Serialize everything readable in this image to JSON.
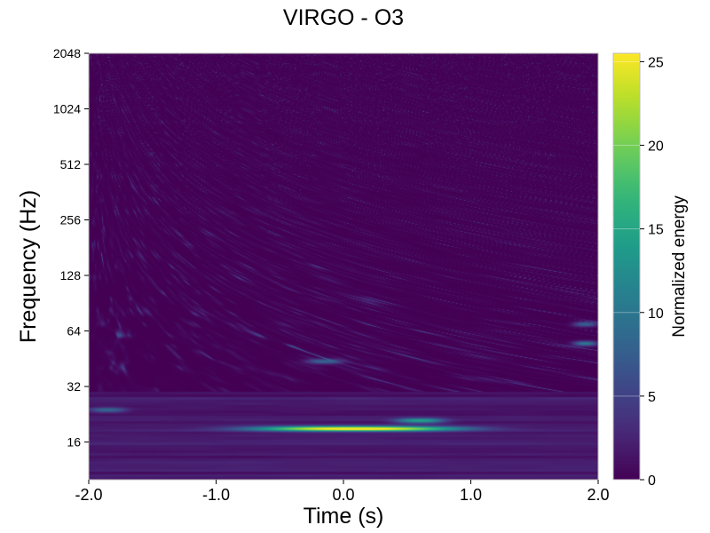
{
  "chart_data": {
    "type": "heatmap",
    "title": "VIRGO - O3",
    "xlabel": "Time (s)",
    "ylabel": "Frequency (Hz)",
    "xlim": [
      -2.0,
      2.0
    ],
    "ylim": [
      10,
      2048
    ],
    "yscale": "log2",
    "xticks": [
      {
        "value": -2.0,
        "label": "-2.0"
      },
      {
        "value": -1.0,
        "label": "-1.0"
      },
      {
        "value": 0.0,
        "label": "0.0"
      },
      {
        "value": 1.0,
        "label": "1.0"
      },
      {
        "value": 2.0,
        "label": "2.0"
      }
    ],
    "yticks": [
      {
        "value": 16,
        "label": "16"
      },
      {
        "value": 32,
        "label": "32"
      },
      {
        "value": 64,
        "label": "64"
      },
      {
        "value": 128,
        "label": "128"
      },
      {
        "value": 256,
        "label": "256"
      },
      {
        "value": 512,
        "label": "512"
      },
      {
        "value": 1024,
        "label": "1024"
      },
      {
        "value": 2048,
        "label": "2048"
      }
    ],
    "colorbar": {
      "label": "Normalized energy",
      "range": [
        0,
        25.5
      ],
      "colormap": "viridis",
      "ticks": [
        {
          "value": 0,
          "label": "0"
        },
        {
          "value": 5,
          "label": "5"
        },
        {
          "value": 10,
          "label": "10"
        },
        {
          "value": 15,
          "label": "15"
        },
        {
          "value": 20,
          "label": "20"
        },
        {
          "value": 25,
          "label": "25"
        }
      ]
    },
    "features": [
      {
        "t_start": -0.8,
        "t_end": 0.9,
        "freq": 19,
        "peak_energy": 25,
        "peak_time": 0.1
      },
      {
        "t_start": 0.4,
        "t_end": 0.8,
        "freq": 21,
        "peak_energy": 13
      },
      {
        "t_start": -2.0,
        "t_end": -1.7,
        "freq": 24,
        "peak_energy": 7
      },
      {
        "t_start": -0.3,
        "t_end": 0.0,
        "freq": 44,
        "peak_energy": 8
      },
      {
        "t_start": 1.8,
        "t_end": 2.0,
        "freq": 55,
        "peak_energy": 10
      },
      {
        "t_start": 1.8,
        "t_end": 2.0,
        "freq": 70,
        "peak_energy": 8
      }
    ],
    "grid": false
  }
}
